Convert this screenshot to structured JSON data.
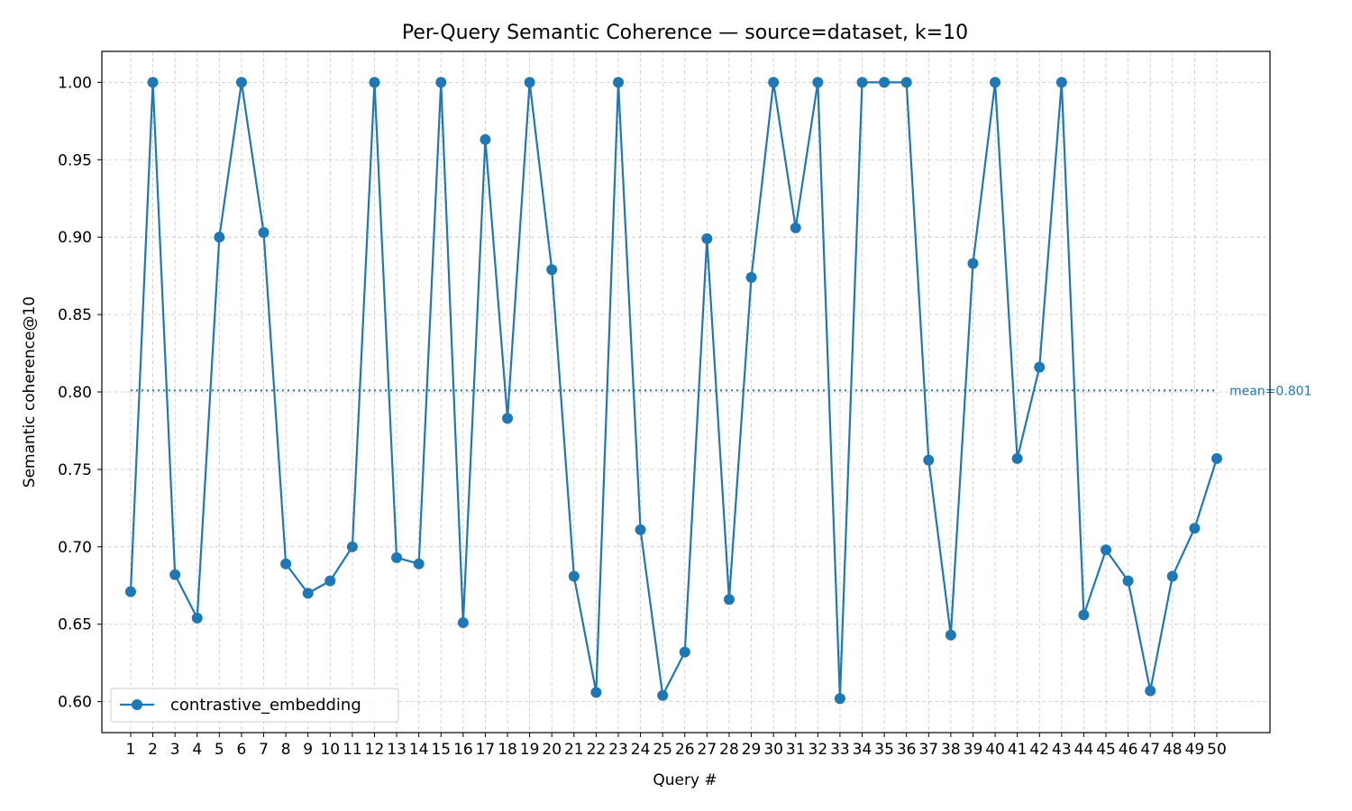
{
  "chart_data": {
    "type": "line",
    "title": "Per-Query Semantic Coherence — source=dataset, k=10",
    "xlabel": "Query #",
    "ylabel": "Semantic coherence@10",
    "x": [
      1,
      2,
      3,
      4,
      5,
      6,
      7,
      8,
      9,
      10,
      11,
      12,
      13,
      14,
      15,
      16,
      17,
      18,
      19,
      20,
      21,
      22,
      23,
      24,
      25,
      26,
      27,
      28,
      29,
      30,
      31,
      32,
      33,
      34,
      35,
      36,
      37,
      38,
      39,
      40,
      41,
      42,
      43,
      44,
      45,
      46,
      47,
      48,
      49,
      50
    ],
    "x_tick_labels": [
      "1",
      "2",
      "3",
      "4",
      "5",
      "6",
      "7",
      "8",
      "9",
      "10",
      "11",
      "12",
      "13",
      "14",
      "15",
      "16",
      "17",
      "18",
      "19",
      "20",
      "21",
      "22",
      "23",
      "24",
      "25",
      "26",
      "27",
      "28",
      "29",
      "30",
      "31",
      "32",
      "33",
      "34",
      "35",
      "36",
      "37",
      "38",
      "39",
      "40",
      "41",
      "42",
      "43",
      "44",
      "45",
      "46",
      "47",
      "48",
      "49",
      "50"
    ],
    "xlim": [
      -0.3,
      52.4
    ],
    "ylim": [
      0.58,
      1.02
    ],
    "y_ticks": [
      0.6,
      0.65,
      0.7,
      0.75,
      0.8,
      0.85,
      0.9,
      0.95,
      1.0
    ],
    "y_tick_labels": [
      "0.60",
      "0.65",
      "0.70",
      "0.75",
      "0.80",
      "0.85",
      "0.90",
      "0.95",
      "1.00"
    ],
    "grid": true,
    "legend_position": "lower-left",
    "series": [
      {
        "name": "contrastive_embedding",
        "color": "#1f77b4",
        "marker": "circle",
        "values": [
          0.671,
          1.0,
          0.682,
          0.654,
          0.9,
          1.0,
          0.903,
          0.689,
          0.67,
          0.678,
          0.7,
          1.0,
          0.693,
          0.689,
          1.0,
          0.651,
          0.963,
          0.783,
          1.0,
          0.879,
          0.681,
          0.606,
          1.0,
          0.711,
          0.604,
          0.632,
          0.899,
          0.666,
          0.874,
          1.0,
          0.906,
          1.0,
          0.602,
          1.0,
          1.0,
          1.0,
          0.756,
          0.643,
          0.883,
          1.0,
          0.757,
          0.816,
          1.0,
          0.656,
          0.698,
          0.678,
          0.607,
          0.681,
          0.712,
          0.757
        ]
      }
    ],
    "mean_line": {
      "value": 0.801,
      "label": "mean=0.801",
      "color": "#1f77b4",
      "style": "dotted"
    }
  }
}
